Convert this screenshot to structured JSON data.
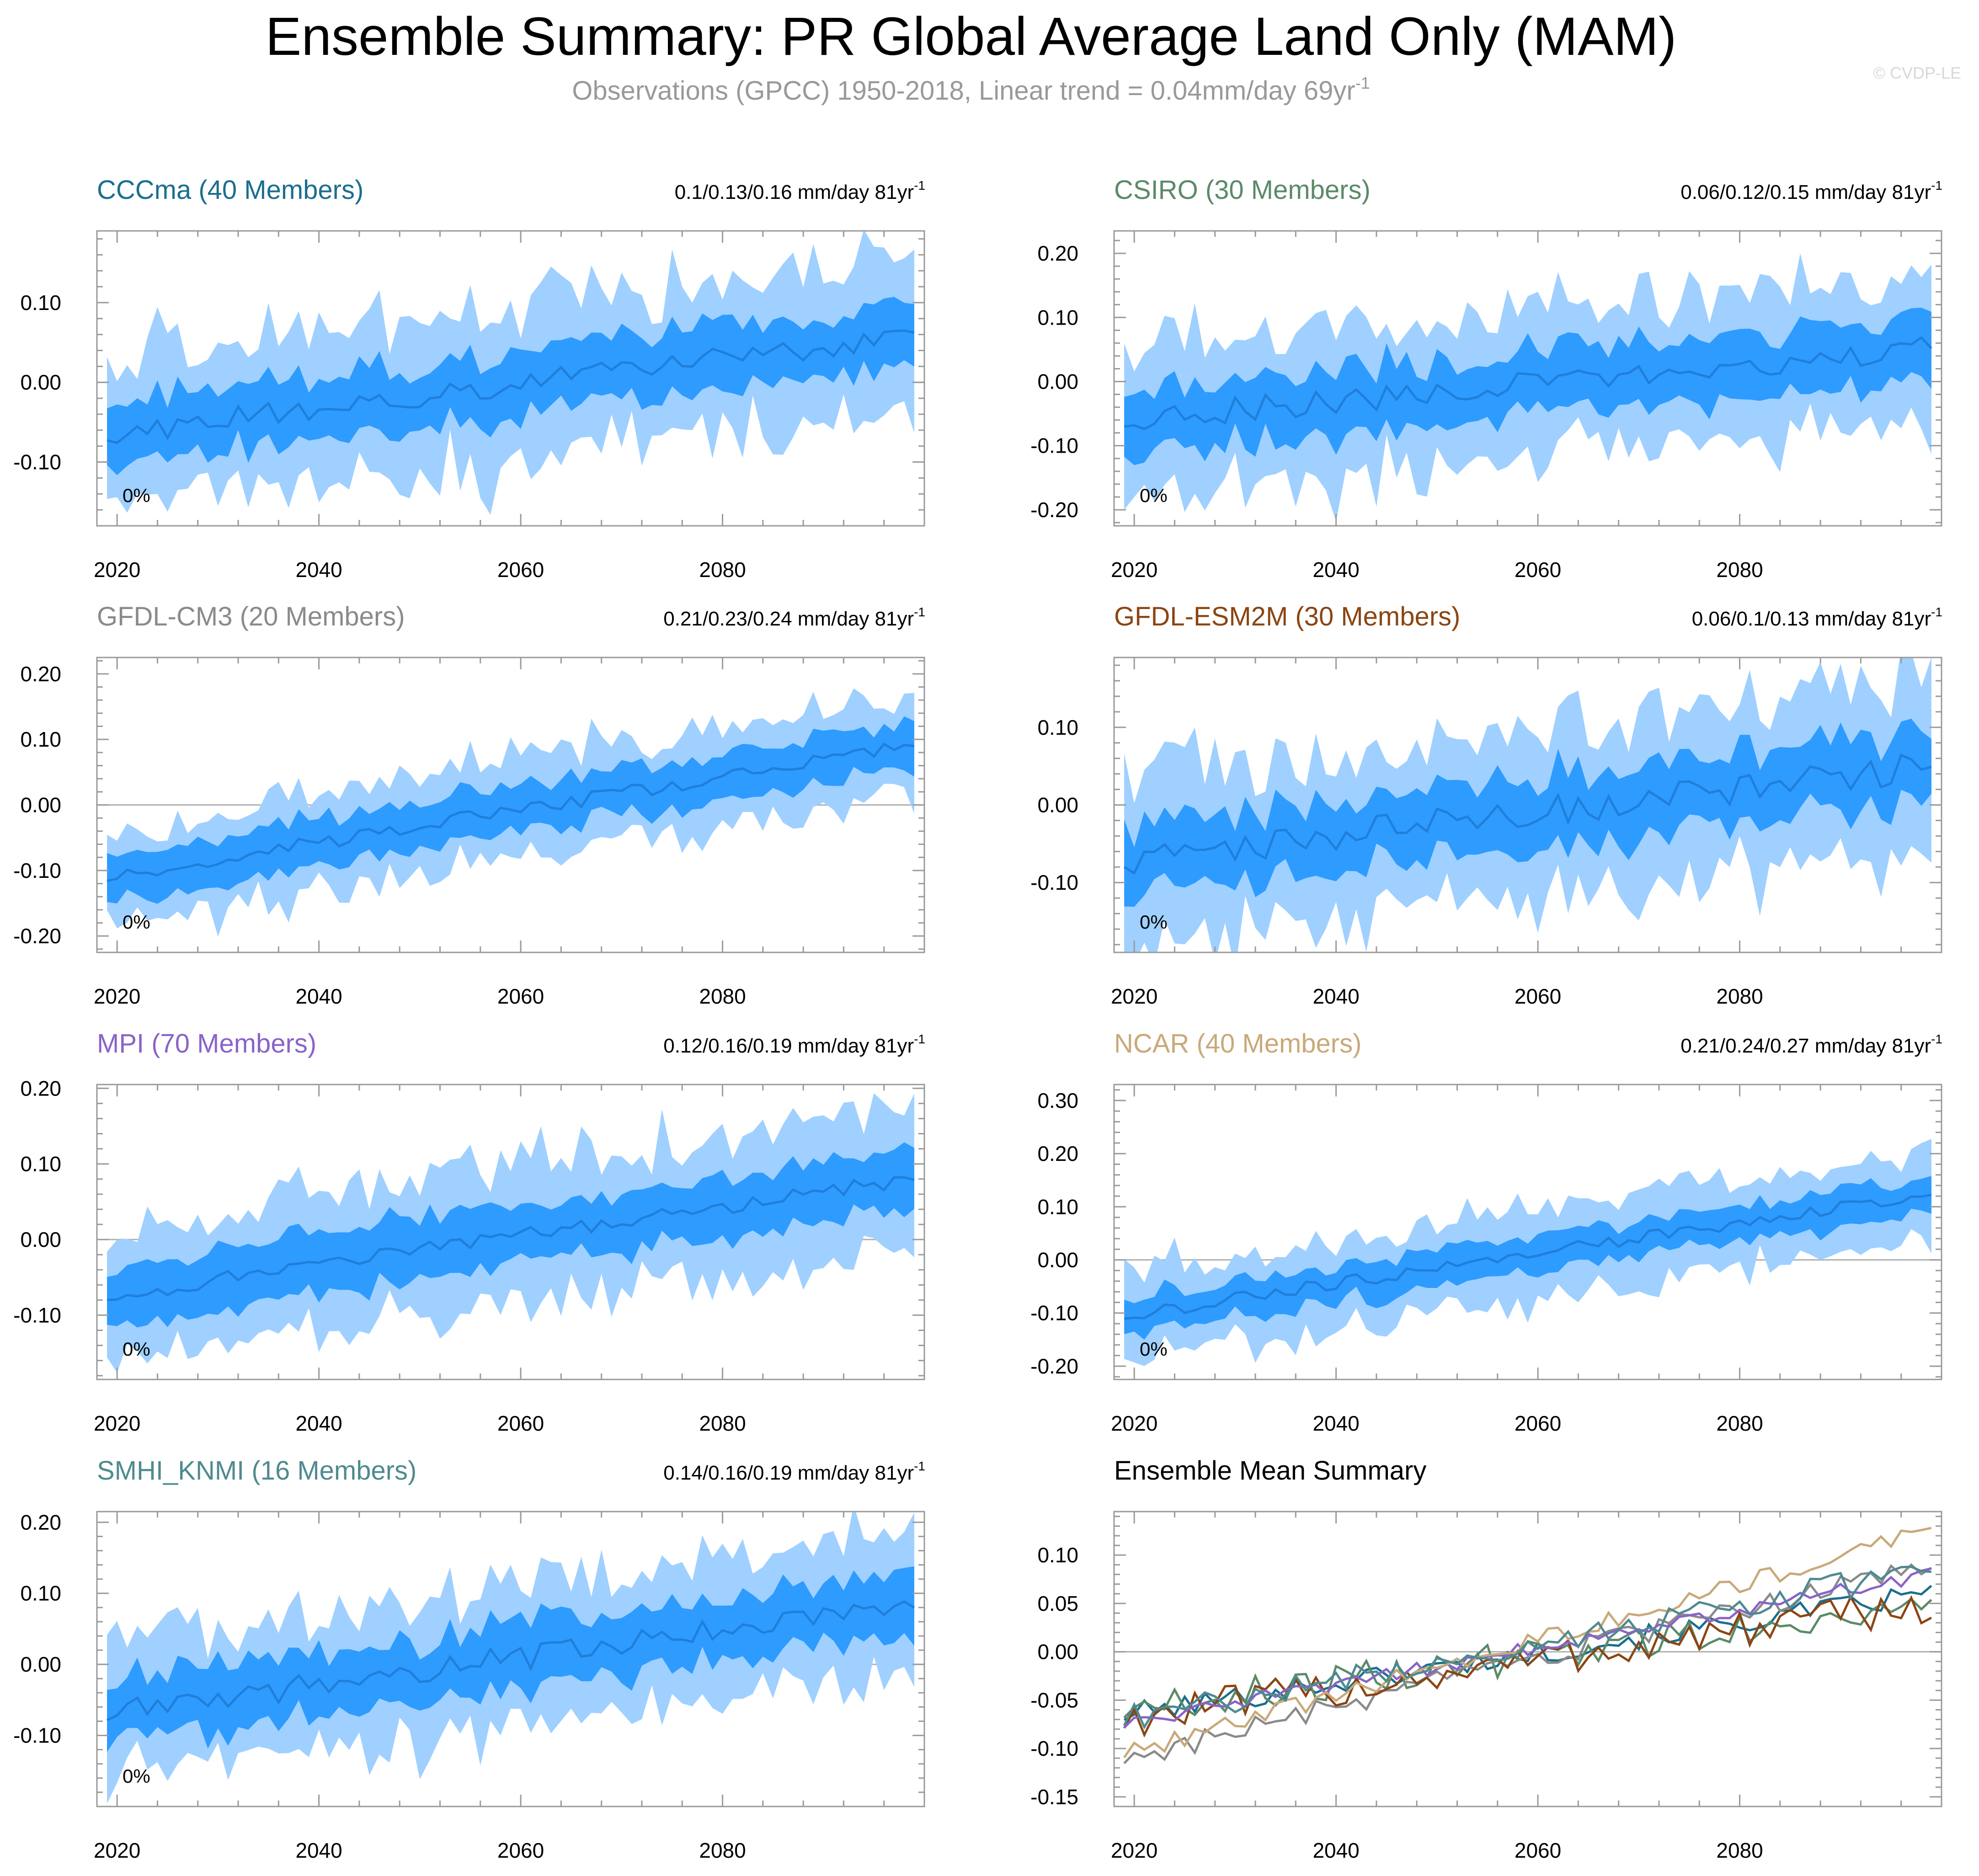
{
  "title": "Ensemble Summary: PR Global Average Land Only (MAM)",
  "subtitle_main": "Observations (GPCC) 1950-2018, Linear trend = 0.04mm/day 69yr",
  "subtitle_sup": "-1",
  "watermark": "© CVDP-LE",
  "colors": {
    "inner_band": "#2e9bff",
    "outer_band": "#9fd0ff",
    "mean_line": "#1f7fd9",
    "zero_line": "#b0b0b0",
    "frame": "#9a9a9a"
  },
  "chart_data": [
    {
      "type": "area",
      "name": "CCCma (40 Members)",
      "title_color": "#1b6e8f",
      "trend_text": "0.1/0.13/0.16 mm/day 81yr",
      "trend_sup": "-1",
      "pct_label": "0%",
      "xlim": [
        2018,
        2100
      ],
      "ylim": [
        -0.18,
        0.19
      ],
      "yticks": [
        -0.1,
        0.0,
        0.1
      ],
      "ytick_labels": [
        "-0.10",
        "0.00",
        "0.10"
      ],
      "xticks": [
        2020,
        2040,
        2060,
        2080
      ],
      "xtick_labels": [
        "2020",
        "2040",
        "2060",
        "2080"
      ],
      "mean_start": -0.065,
      "mean_end": 0.06,
      "inner_halfwidth": 0.04,
      "outer_halfwidth": 0.085,
      "noise": 0.015,
      "seed": 11
    },
    {
      "type": "area",
      "name": "CSIRO (30 Members)",
      "title_color": "#5b8a68",
      "trend_text": "0.06/0.12/0.15 mm/day 81yr",
      "trend_sup": "-1",
      "pct_label": "0%",
      "xlim": [
        2018,
        2100
      ],
      "ylim": [
        -0.225,
        0.235
      ],
      "yticks": [
        -0.2,
        -0.1,
        0.0,
        0.1,
        0.2
      ],
      "ytick_labels": [
        "-0.20",
        "-0.10",
        "0.00",
        "0.10",
        "0.20"
      ],
      "xticks": [
        2020,
        2040,
        2060,
        2080
      ],
      "xtick_labels": [
        "2020",
        "2040",
        "2060",
        "2080"
      ],
      "mean_start": -0.06,
      "mean_end": 0.05,
      "inner_halfwidth": 0.05,
      "outer_halfwidth": 0.11,
      "noise": 0.02,
      "seed": 23
    },
    {
      "type": "area",
      "name": "GFDL-CM3 (20 Members)",
      "title_color": "#8a8a8a",
      "trend_text": "0.21/0.23/0.24 mm/day 81yr",
      "trend_sup": "-1",
      "pct_label": "0%",
      "xlim": [
        2018,
        2100
      ],
      "ylim": [
        -0.225,
        0.225
      ],
      "yticks": [
        -0.2,
        -0.1,
        0.0,
        0.1,
        0.2
      ],
      "ytick_labels": [
        "-0.20",
        "-0.10",
        "0.00",
        "0.10",
        "0.20"
      ],
      "xticks": [
        2020,
        2040,
        2060,
        2080
      ],
      "xtick_labels": [
        "2020",
        "2040",
        "2060",
        "2080"
      ],
      "mean_start": -0.11,
      "mean_end": 0.09,
      "inner_halfwidth": 0.035,
      "outer_halfwidth": 0.07,
      "noise": 0.012,
      "seed": 37
    },
    {
      "type": "area",
      "name": "GFDL-ESM2M (30 Members)",
      "title_color": "#8b4513",
      "trend_text": "0.06/0.1/0.13 mm/day 81yr",
      "trend_sup": "-1",
      "pct_label": "0%",
      "xlim": [
        2018,
        2100
      ],
      "ylim": [
        -0.19,
        0.19
      ],
      "yticks": [
        -0.1,
        0.0,
        0.1
      ],
      "ytick_labels": [
        "-0.10",
        "0.00",
        "0.10"
      ],
      "xticks": [
        2020,
        2040,
        2060,
        2080
      ],
      "xtick_labels": [
        "2020",
        "2040",
        "2060",
        "2080"
      ],
      "mean_start": -0.07,
      "mean_end": 0.05,
      "inner_halfwidth": 0.045,
      "outer_halfwidth": 0.1,
      "noise": 0.02,
      "seed": 41
    },
    {
      "type": "area",
      "name": "MPI (70 Members)",
      "title_color": "#8a63c9",
      "trend_text": "0.12/0.16/0.19 mm/day 81yr",
      "trend_sup": "-1",
      "pct_label": "0%",
      "xlim": [
        2018,
        2100
      ],
      "ylim": [
        -0.185,
        0.205
      ],
      "yticks": [
        -0.1,
        0.0,
        0.1,
        0.2
      ],
      "ytick_labels": [
        "-0.10",
        "0.00",
        "0.10",
        "0.20"
      ],
      "xticks": [
        2020,
        2040,
        2060,
        2080
      ],
      "xtick_labels": [
        "2020",
        "2040",
        "2060",
        "2080"
      ],
      "mean_start": -0.075,
      "mean_end": 0.08,
      "inner_halfwidth": 0.04,
      "outer_halfwidth": 0.085,
      "noise": 0.01,
      "seed": 53
    },
    {
      "type": "area",
      "name": "NCAR (40 Members)",
      "title_color": "#c9a97a",
      "trend_text": "0.21/0.24/0.27 mm/day 81yr",
      "trend_sup": "-1",
      "pct_label": "0%",
      "xlim": [
        2018,
        2100
      ],
      "ylim": [
        -0.225,
        0.33
      ],
      "yticks": [
        -0.2,
        -0.1,
        0.0,
        0.1,
        0.2,
        0.3
      ],
      "ytick_labels": [
        "-0.20",
        "-0.10",
        "0.00",
        "0.10",
        "0.20",
        "0.30"
      ],
      "xticks": [
        2020,
        2040,
        2060,
        2080
      ],
      "xtick_labels": [
        "2020",
        "2040",
        "2060",
        "2080"
      ],
      "mean_start": -0.105,
      "mean_end": 0.125,
      "inner_halfwidth": 0.035,
      "outer_halfwidth": 0.08,
      "noise": 0.012,
      "seed": 67
    },
    {
      "type": "area",
      "name": "SMHI_KNMI (16 Members)",
      "title_color": "#4f8a8f",
      "trend_text": "0.14/0.16/0.19 mm/day 81yr",
      "trend_sup": "-1",
      "pct_label": "0%",
      "xlim": [
        2018,
        2100
      ],
      "ylim": [
        -0.2,
        0.215
      ],
      "yticks": [
        -0.1,
        0.0,
        0.1,
        0.2
      ],
      "ytick_labels": [
        "-0.10",
        "0.00",
        "0.10",
        "0.20"
      ],
      "xticks": [
        2020,
        2040,
        2060,
        2080
      ],
      "xtick_labels": [
        "2020",
        "2040",
        "2060",
        "2080"
      ],
      "mean_start": -0.07,
      "mean_end": 0.085,
      "inner_halfwidth": 0.045,
      "outer_halfwidth": 0.09,
      "noise": 0.018,
      "seed": 79
    },
    {
      "type": "line",
      "name": "Ensemble Mean Summary",
      "title_color": "#000000",
      "xlim": [
        2018,
        2100
      ],
      "ylim": [
        -0.16,
        0.145
      ],
      "yticks": [
        -0.15,
        -0.1,
        -0.05,
        0.0,
        0.05,
        0.1
      ],
      "ytick_labels": [
        "-0.15",
        "-0.10",
        "-0.05",
        "0.00",
        "0.05",
        "0.10"
      ],
      "xticks": [
        2020,
        2040,
        2060,
        2080
      ],
      "xtick_labels": [
        "2020",
        "2040",
        "2060",
        "2080"
      ],
      "series": [
        {
          "name": "CCCma",
          "color": "#1b6e8f",
          "start": -0.065,
          "end": 0.06,
          "noise": 0.012,
          "seed": 101
        },
        {
          "name": "CSIRO",
          "color": "#5b8a68",
          "start": -0.06,
          "end": 0.05,
          "noise": 0.018,
          "seed": 102
        },
        {
          "name": "GFDL-CM3",
          "color": "#8a8a8a",
          "start": -0.11,
          "end": 0.09,
          "noise": 0.012,
          "seed": 103
        },
        {
          "name": "GFDL-ESM2M",
          "color": "#8b4513",
          "start": -0.07,
          "end": 0.05,
          "noise": 0.02,
          "seed": 104
        },
        {
          "name": "MPI",
          "color": "#8a63c9",
          "start": -0.075,
          "end": 0.08,
          "noise": 0.008,
          "seed": 105
        },
        {
          "name": "NCAR",
          "color": "#c9a97a",
          "start": -0.105,
          "end": 0.125,
          "noise": 0.01,
          "seed": 106
        },
        {
          "name": "SMHI_KNMI",
          "color": "#4f8a8f",
          "start": -0.07,
          "end": 0.085,
          "noise": 0.014,
          "seed": 107
        }
      ]
    }
  ]
}
